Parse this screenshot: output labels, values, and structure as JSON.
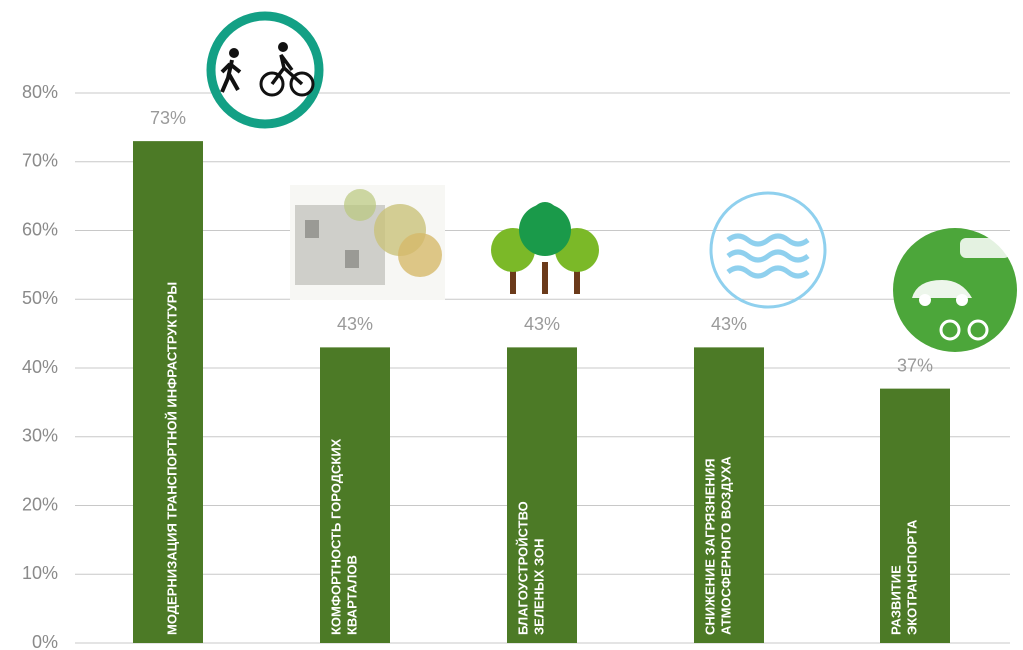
{
  "chart_data": {
    "type": "bar",
    "categories": [
      [
        "МОДЕРНИЗАЦИЯ ТРАНСПОРТНОЙ ИНФРАСТРУКТУРЫ"
      ],
      [
        "КОМФОРТНОСТЬ ГОРОДСКИХ",
        "КВАРТАЛОВ"
      ],
      [
        "БЛАГОУСТРОЙСТВО",
        "ЗЕЛЕНЫХ ЗОН"
      ],
      [
        "СНИЖЕНИЕ ЗАГРЯЗНЕНИЯ",
        "АТМОСФЕРНОГО ВОЗДУХА"
      ],
      [
        "РАЗВИТИЕ",
        "ЭКОТРАНСПОРТА"
      ]
    ],
    "values": [
      73,
      43,
      43,
      43,
      37
    ],
    "value_labels": [
      "73%",
      "43%",
      "43%",
      "43%",
      "37%"
    ],
    "color": "#4c7a26",
    "ylim": [
      0,
      80
    ],
    "yticks": [
      {
        "value": 0,
        "label": "0%"
      },
      {
        "value": 10,
        "label": "10%"
      },
      {
        "value": 20,
        "label": "20%"
      },
      {
        "value": 30,
        "label": "30%"
      },
      {
        "value": 40,
        "label": "40%"
      },
      {
        "value": 50,
        "label": "50%"
      },
      {
        "value": 60,
        "label": "60%"
      },
      {
        "value": 70,
        "label": "70%"
      },
      {
        "value": 80,
        "label": "80%"
      }
    ],
    "grid": true
  }
}
